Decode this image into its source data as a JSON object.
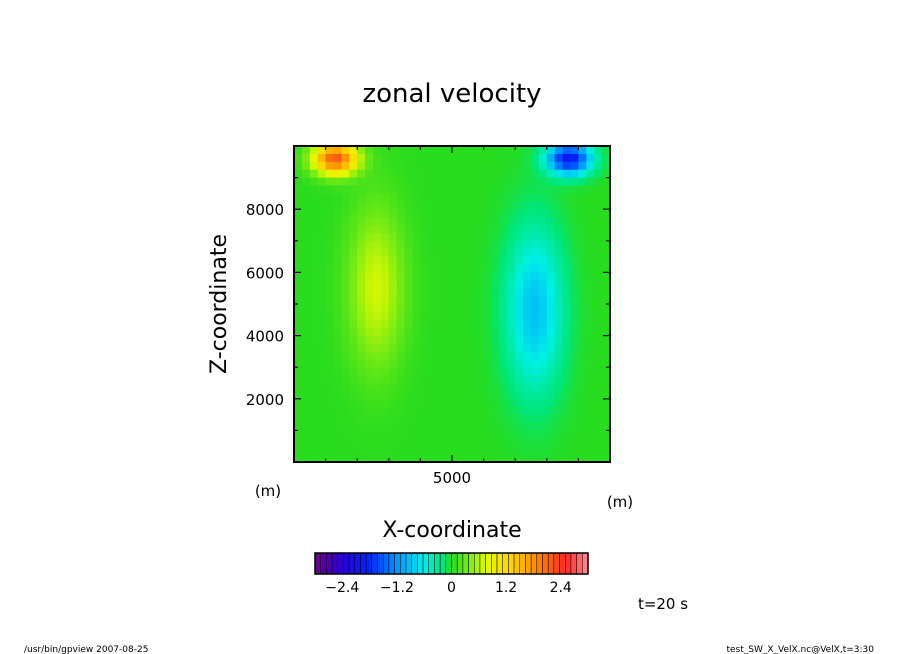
{
  "chart_data": {
    "type": "heatmap",
    "title": "zonal velocity",
    "xlabel": "X-coordinate",
    "ylabel": "Z-coordinate",
    "x_unit": "(m)",
    "y_unit": "(m)",
    "xlim": [
      0,
      10000
    ],
    "ylim": [
      0,
      10000
    ],
    "x_ticks": [
      "5000"
    ],
    "y_ticks": [
      "2000",
      "4000",
      "6000",
      "8000"
    ],
    "colorbar": {
      "min": -3.0,
      "max": 3.0,
      "tick_labels": [
        "−2.4",
        "−1.2",
        "0",
        "1.2",
        "2.4"
      ],
      "tick_values": [
        -2.4,
        -1.2,
        0,
        1.2,
        2.4
      ]
    },
    "field_features": [
      {
        "x": 1300,
        "z": 9600,
        "value": 2.2
      },
      {
        "x": 2600,
        "z": 5500,
        "value": 0.7
      },
      {
        "x": 7600,
        "z": 4800,
        "value": -0.9
      },
      {
        "x": 8700,
        "z": 9600,
        "value": -2.0
      }
    ]
  },
  "annotations": {
    "time": "t=20 s",
    "footer_left": "/usr/bin/gpview   2007-08-25",
    "footer_right": "test_SW_X_VelX.nc@VelX,t=3:30"
  }
}
